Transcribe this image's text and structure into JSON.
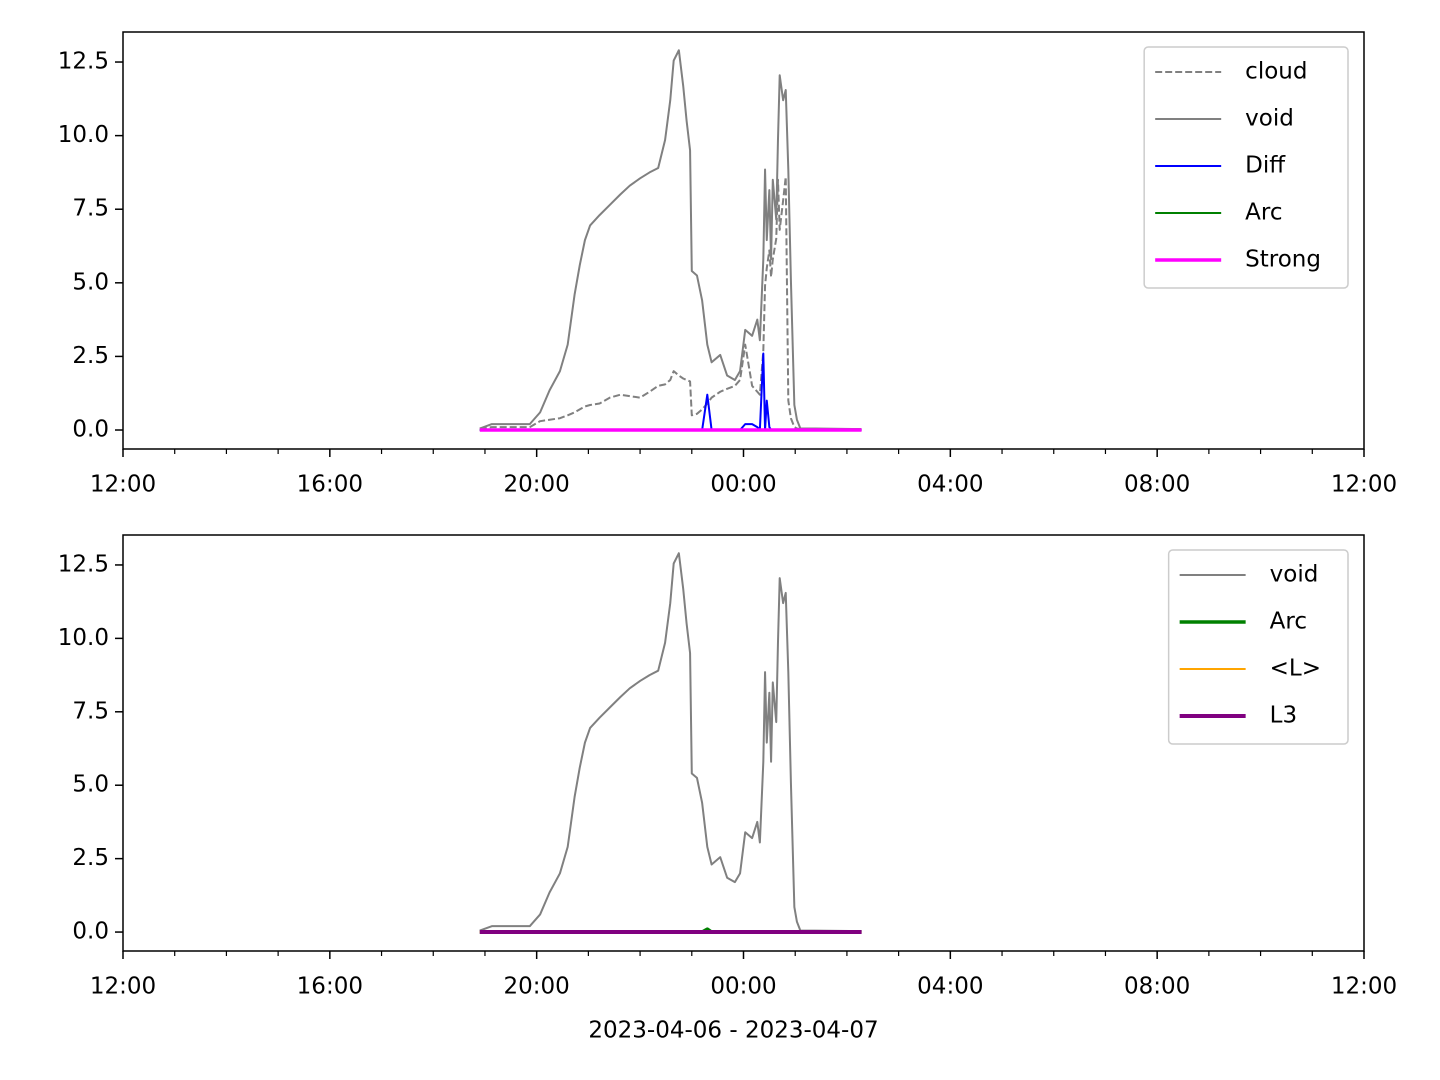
{
  "chart_data": [
    {
      "type": "line",
      "x": [
        "2023-04-06 18:54",
        "2023-04-06 19:08",
        "2023-04-06 19:52",
        "2023-04-06 20:04",
        "2023-04-06 20:15",
        "2023-04-06 20:27",
        "2023-04-06 20:36",
        "2023-04-06 20:44",
        "2023-04-06 20:50",
        "2023-04-06 20:56",
        "2023-04-06 21:02",
        "2023-04-06 21:13",
        "2023-04-06 21:25",
        "2023-04-06 21:37",
        "2023-04-06 21:48",
        "2023-04-06 22:00",
        "2023-04-06 22:11",
        "2023-04-06 22:21",
        "2023-04-06 22:29",
        "2023-04-06 22:35",
        "2023-04-06 22:39",
        "2023-04-06 22:45",
        "2023-04-06 22:50",
        "2023-04-06 22:54",
        "2023-04-06 22:58",
        "2023-04-06 23:00",
        "2023-04-06 23:06",
        "2023-04-06 23:12",
        "2023-04-06 23:18",
        "2023-04-06 23:23",
        "2023-04-06 23:33",
        "2023-04-06 23:41",
        "2023-04-06 23:50",
        "2023-04-06 23:56",
        "2023-04-07 00:02",
        "2023-04-07 00:10",
        "2023-04-07 00:16",
        "2023-04-07 00:19",
        "2023-04-07 00:23",
        "2023-04-07 00:25",
        "2023-04-07 00:27",
        "2023-04-07 00:30",
        "2023-04-07 00:32",
        "2023-04-07 00:34",
        "2023-04-07 00:38",
        "2023-04-07 00:40",
        "2023-04-07 00:42",
        "2023-04-07 00:46",
        "2023-04-07 00:49",
        "2023-04-07 00:52",
        "2023-04-07 00:55",
        "2023-04-07 00:59",
        "2023-04-07 01:02",
        "2023-04-07 01:06",
        "2023-04-07 01:23",
        "2023-04-07 02:17"
      ],
      "series": [
        {
          "name": "cloud",
          "color": "#808080",
          "linewidth": 2,
          "dashed": true,
          "values": [
            0.05,
            0.1,
            0.1,
            0.3,
            0.35,
            0.4,
            0.5,
            0.6,
            0.7,
            0.8,
            0.85,
            0.9,
            1.1,
            1.2,
            1.15,
            1.1,
            1.3,
            1.5,
            1.55,
            1.7,
            2.0,
            1.85,
            1.75,
            1.7,
            1.65,
            0.5,
            0.55,
            0.7,
            0.9,
            1.1,
            1.3,
            1.4,
            1.5,
            1.7,
            2.9,
            1.5,
            1.3,
            1.2,
            2.7,
            4.9,
            5.5,
            6.1,
            5.2,
            5.8,
            6.5,
            8.5,
            6.8,
            7.8,
            8.6,
            1.0,
            0.4,
            0.1,
            0.05,
            0.03,
            0.03,
            0.03
          ]
        },
        {
          "name": "void",
          "color": "#808080",
          "linewidth": 2,
          "dashed": false,
          "values": [
            0.05,
            0.2,
            0.2,
            0.6,
            1.35,
            2.0,
            2.9,
            4.6,
            5.6,
            6.45,
            6.95,
            7.3,
            7.65,
            8.0,
            8.3,
            8.55,
            8.75,
            8.9,
            9.85,
            11.2,
            12.55,
            12.9,
            11.7,
            10.5,
            9.5,
            5.4,
            5.25,
            4.4,
            2.9,
            2.3,
            2.55,
            1.85,
            1.7,
            2.0,
            3.4,
            3.2,
            3.75,
            3.05,
            5.8,
            8.85,
            6.45,
            8.15,
            5.8,
            8.5,
            7.15,
            9.85,
            12.05,
            11.2,
            11.55,
            8.85,
            5.1,
            0.85,
            0.35,
            0.05,
            0.05,
            0.03
          ]
        },
        {
          "name": "Diff",
          "color": "#0000ff",
          "linewidth": 2,
          "dashed": false,
          "values": [
            0,
            0,
            0,
            0,
            0,
            0,
            0,
            0,
            0,
            0,
            0,
            0,
            0,
            0,
            0,
            0,
            0,
            0,
            0,
            0,
            0,
            0,
            0,
            0,
            0,
            0,
            0,
            0,
            1.2,
            0,
            0,
            0,
            0,
            0,
            0.2,
            0.2,
            0.1,
            0,
            2.6,
            0,
            1.0,
            0.1,
            0,
            0,
            0,
            0,
            0,
            0,
            0,
            0,
            0,
            0,
            0,
            0,
            0,
            0
          ]
        },
        {
          "name": "Arc",
          "color": "#008000",
          "linewidth": 2,
          "dashed": false,
          "values": [
            0,
            0,
            0,
            0,
            0,
            0,
            0,
            0,
            0,
            0,
            0,
            0,
            0,
            0,
            0,
            0,
            0,
            0,
            0,
            0,
            0,
            0,
            0,
            0,
            0,
            0,
            0,
            0,
            0,
            0,
            0,
            0,
            0,
            0,
            0,
            0,
            0,
            0,
            0,
            0,
            0,
            0,
            0,
            0,
            0,
            0,
            0,
            0,
            0,
            0,
            0,
            0,
            0,
            0,
            0,
            0
          ]
        },
        {
          "name": "Strong",
          "color": "#ff00ff",
          "linewidth": 3.5,
          "dashed": false,
          "values": [
            0,
            0,
            0,
            0,
            0,
            0,
            0,
            0,
            0,
            0,
            0,
            0,
            0,
            0,
            0,
            0,
            0,
            0,
            0,
            0,
            0,
            0,
            0,
            0,
            0,
            0,
            0,
            0,
            0,
            0,
            0,
            0,
            0,
            0,
            0,
            0,
            0,
            0,
            0,
            0,
            0,
            0,
            0,
            0,
            0,
            0,
            0,
            0,
            0,
            0,
            0,
            0,
            0,
            0,
            0,
            0
          ]
        }
      ],
      "xlim": [
        "2023-04-06 12:00",
        "2023-04-07 12:00"
      ],
      "xticks": [
        {
          "value": "2023-04-06 12:00",
          "label": "12:00"
        },
        {
          "value": "2023-04-06 16:00",
          "label": "16:00"
        },
        {
          "value": "2023-04-06 20:00",
          "label": "20:00"
        },
        {
          "value": "2023-04-07 00:00",
          "label": "00:00"
        },
        {
          "value": "2023-04-07 04:00",
          "label": "04:00"
        },
        {
          "value": "2023-04-07 08:00",
          "label": "08:00"
        },
        {
          "value": "2023-04-07 12:00",
          "label": "12:00"
        }
      ],
      "xminorticks": [
        "2023-04-06 13:00",
        "2023-04-06 14:00",
        "2023-04-06 15:00",
        "2023-04-06 17:00",
        "2023-04-06 18:00",
        "2023-04-06 19:00",
        "2023-04-06 21:00",
        "2023-04-06 22:00",
        "2023-04-06 23:00",
        "2023-04-07 01:00",
        "2023-04-07 02:00",
        "2023-04-07 03:00",
        "2023-04-07 05:00",
        "2023-04-07 06:00",
        "2023-04-07 07:00",
        "2023-04-07 09:00",
        "2023-04-07 10:00",
        "2023-04-07 11:00"
      ],
      "ylim": [
        -0.645,
        13.52
      ],
      "yticks": [
        {
          "value": 0,
          "label": "0.0"
        },
        2.5,
        {
          "value": 5,
          "label": "5.0"
        },
        7.5,
        {
          "value": 10,
          "label": "10.0"
        },
        12.5
      ],
      "legend": "upper right"
    },
    {
      "type": "line",
      "x": [
        "2023-04-06 18:54",
        "2023-04-06 19:08",
        "2023-04-06 19:52",
        "2023-04-06 20:04",
        "2023-04-06 20:15",
        "2023-04-06 20:27",
        "2023-04-06 20:36",
        "2023-04-06 20:44",
        "2023-04-06 20:50",
        "2023-04-06 20:56",
        "2023-04-06 21:02",
        "2023-04-06 21:13",
        "2023-04-06 21:25",
        "2023-04-06 21:37",
        "2023-04-06 21:48",
        "2023-04-06 22:00",
        "2023-04-06 22:11",
        "2023-04-06 22:21",
        "2023-04-06 22:29",
        "2023-04-06 22:35",
        "2023-04-06 22:39",
        "2023-04-06 22:45",
        "2023-04-06 22:50",
        "2023-04-06 22:54",
        "2023-04-06 22:58",
        "2023-04-06 23:00",
        "2023-04-06 23:06",
        "2023-04-06 23:12",
        "2023-04-06 23:18",
        "2023-04-06 23:23",
        "2023-04-06 23:33",
        "2023-04-06 23:41",
        "2023-04-06 23:50",
        "2023-04-06 23:56",
        "2023-04-07 00:02",
        "2023-04-07 00:10",
        "2023-04-07 00:16",
        "2023-04-07 00:19",
        "2023-04-07 00:23",
        "2023-04-07 00:25",
        "2023-04-07 00:27",
        "2023-04-07 00:30",
        "2023-04-07 00:32",
        "2023-04-07 00:34",
        "2023-04-07 00:38",
        "2023-04-07 00:40",
        "2023-04-07 00:42",
        "2023-04-07 00:46",
        "2023-04-07 00:49",
        "2023-04-07 00:52",
        "2023-04-07 00:55",
        "2023-04-07 00:59",
        "2023-04-07 01:02",
        "2023-04-07 01:06",
        "2023-04-07 01:23",
        "2023-04-07 02:17"
      ],
      "series": [
        {
          "name": "void",
          "color": "#808080",
          "linewidth": 2,
          "dashed": false,
          "values": [
            0.05,
            0.2,
            0.2,
            0.6,
            1.35,
            2.0,
            2.9,
            4.6,
            5.6,
            6.45,
            6.95,
            7.3,
            7.65,
            8.0,
            8.3,
            8.55,
            8.75,
            8.9,
            9.85,
            11.2,
            12.55,
            12.9,
            11.7,
            10.5,
            9.5,
            5.4,
            5.25,
            4.4,
            2.9,
            2.3,
            2.55,
            1.85,
            1.7,
            2.0,
            3.4,
            3.2,
            3.75,
            3.05,
            5.8,
            8.85,
            6.45,
            8.15,
            5.8,
            8.5,
            7.15,
            9.85,
            12.05,
            11.2,
            11.55,
            8.85,
            5.1,
            0.85,
            0.35,
            0.05,
            0.05,
            0.03
          ]
        },
        {
          "name": "Arc",
          "color": "#008000",
          "linewidth": 3.5,
          "dashed": false,
          "values": [
            0,
            0,
            0,
            0,
            0,
            0,
            0,
            0,
            0,
            0,
            0,
            0,
            0,
            0,
            0,
            0,
            0,
            0,
            0,
            0,
            0,
            0,
            0,
            0,
            0,
            0,
            0,
            0,
            0.1,
            0,
            0,
            0,
            0,
            0,
            0,
            0,
            0,
            0,
            0,
            0,
            0,
            0,
            0,
            0,
            0,
            0,
            0,
            0,
            0,
            0,
            0,
            0,
            0,
            0,
            0,
            0
          ]
        },
        {
          "name": "<L>",
          "color": "#ffa500",
          "linewidth": 2,
          "dashed": false,
          "values": [
            0,
            0,
            0,
            0,
            0,
            0,
            0,
            0,
            0,
            0,
            0,
            0,
            0,
            0,
            0,
            0,
            0,
            0,
            0,
            0,
            0,
            0,
            0,
            0,
            0,
            0,
            0,
            0,
            0,
            0,
            0,
            0,
            0,
            0,
            0,
            0,
            0,
            0,
            0,
            0,
            0,
            0,
            0,
            0,
            0,
            0,
            0,
            0,
            0,
            0,
            0,
            0,
            0,
            0,
            0,
            0
          ]
        },
        {
          "name": "L3",
          "color": "#800080",
          "linewidth": 4,
          "dashed": false,
          "values": [
            0,
            0,
            0,
            0,
            0,
            0,
            0,
            0,
            0,
            0,
            0,
            0,
            0,
            0,
            0,
            0,
            0,
            0,
            0,
            0,
            0,
            0,
            0,
            0,
            0,
            0,
            0,
            0,
            0,
            0,
            0,
            0,
            0,
            0,
            0,
            0,
            0,
            0,
            0,
            0,
            0,
            0,
            0,
            0,
            0,
            0,
            0,
            0,
            0,
            0,
            0,
            0,
            0,
            0,
            0,
            0
          ]
        }
      ],
      "xlim": [
        "2023-04-06 12:00",
        "2023-04-07 12:00"
      ],
      "xticks": [
        {
          "value": "2023-04-06 12:00",
          "label": "12:00"
        },
        {
          "value": "2023-04-06 16:00",
          "label": "16:00"
        },
        {
          "value": "2023-04-06 20:00",
          "label": "20:00"
        },
        {
          "value": "2023-04-07 00:00",
          "label": "00:00"
        },
        {
          "value": "2023-04-07 04:00",
          "label": "04:00"
        },
        {
          "value": "2023-04-07 08:00",
          "label": "08:00"
        },
        {
          "value": "2023-04-07 12:00",
          "label": "12:00"
        }
      ],
      "xminorticks": [
        "2023-04-06 13:00",
        "2023-04-06 14:00",
        "2023-04-06 15:00",
        "2023-04-06 17:00",
        "2023-04-06 18:00",
        "2023-04-06 19:00",
        "2023-04-06 21:00",
        "2023-04-06 22:00",
        "2023-04-06 23:00",
        "2023-04-07 01:00",
        "2023-04-07 02:00",
        "2023-04-07 03:00",
        "2023-04-07 05:00",
        "2023-04-07 06:00",
        "2023-04-07 07:00",
        "2023-04-07 09:00",
        "2023-04-07 10:00",
        "2023-04-07 11:00"
      ],
      "ylim": [
        -0.645,
        13.52
      ],
      "yticks": [
        {
          "value": 0,
          "label": "0.0"
        },
        2.5,
        {
          "value": 5,
          "label": "5.0"
        },
        7.5,
        {
          "value": 10,
          "label": "10.0"
        },
        12.5
      ],
      "xlabel": "2023-04-06 - 2023-04-07",
      "legend": "upper right"
    }
  ]
}
